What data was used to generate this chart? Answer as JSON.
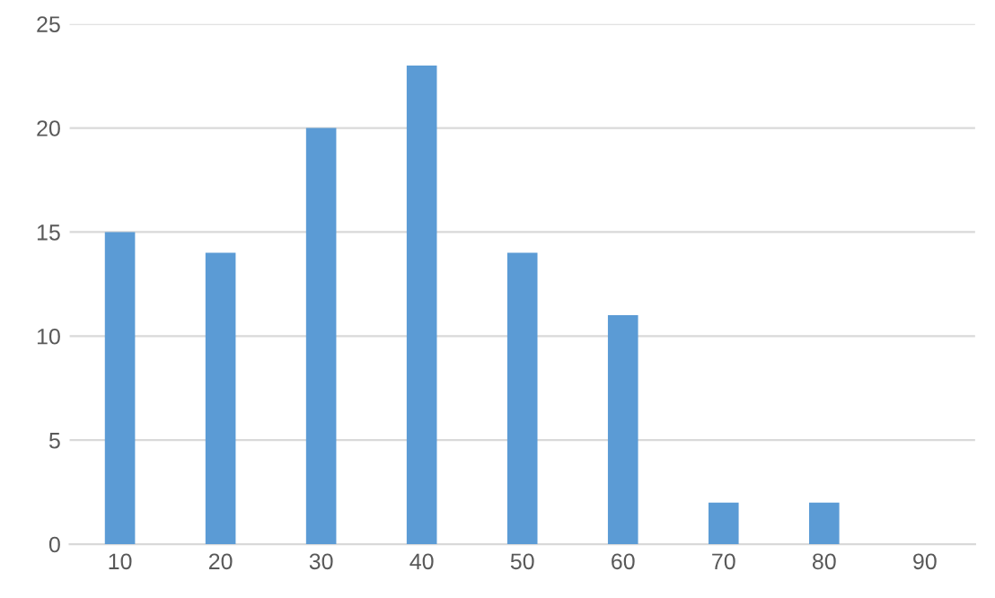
{
  "chart_data": {
    "type": "bar",
    "categories": [
      "10",
      "20",
      "30",
      "40",
      "50",
      "60",
      "70",
      "80",
      "90"
    ],
    "values": [
      15,
      14,
      20,
      23,
      14,
      11,
      2,
      2,
      0
    ],
    "color": "#5b9bd5",
    "ylim": [
      0,
      25
    ],
    "yticks": [
      0,
      5,
      10,
      15,
      20,
      25
    ],
    "grid": "y",
    "legend": false
  }
}
